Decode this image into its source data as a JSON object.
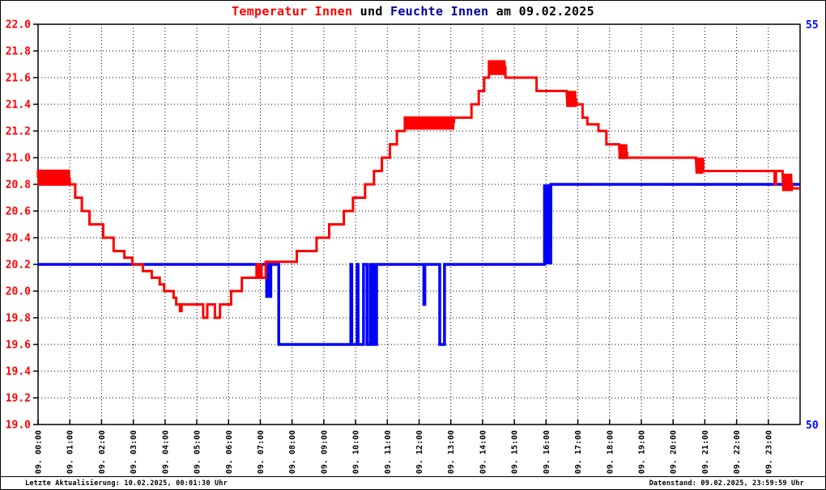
{
  "title": {
    "part1": "Temperatur Innen",
    "part2": " und ",
    "part3": "Feuchte Innen",
    "part4": " am 09.02.2025"
  },
  "footer": {
    "left": "Letzte Aktualisierung: 10.02.2025, 00:01:30 Uhr",
    "right": "Datenstand: 09.02.2025, 23:59:59 Uhr"
  },
  "colors": {
    "temperature": "#ff0000",
    "humidity": "#0000ff",
    "title_humidity": "#000099",
    "axis_left_labels": "#ff0000",
    "axis_right_labels": "#0000ff",
    "grid": "#000000",
    "background": "#ffffff"
  },
  "chart_data": {
    "type": "line",
    "title": "Temperatur Innen und Feuchte Innen am 09.02.2025",
    "grid": "dotted",
    "x_axis": {
      "range_hours": [
        0,
        24
      ],
      "tick_hours": [
        0,
        1,
        2,
        3,
        4,
        5,
        6,
        7,
        8,
        9,
        10,
        11,
        12,
        13,
        14,
        15,
        16,
        17,
        18,
        19,
        20,
        21,
        22,
        23
      ],
      "tick_labels": [
        "09. 00:00",
        "09. 01:00",
        "09. 02:00",
        "09. 03:00",
        "09. 04:00",
        "09. 05:00",
        "09. 06:00",
        "09. 07:00",
        "09. 08:00",
        "09. 09:00",
        "09. 10:00",
        "09. 11:00",
        "09. 12:00",
        "09. 13:00",
        "09. 14:00",
        "09. 15:00",
        "09. 16:00",
        "09. 17:00",
        "09. 18:00",
        "09. 19:00",
        "09. 20:00",
        "09. 21:00",
        "09. 22:00",
        "09. 23:00"
      ]
    },
    "y_axis_left": {
      "name": "Temperatur Innen",
      "min": 19.0,
      "max": 22.0,
      "tick_step": 0.2,
      "tick_labels": [
        "22.0",
        "21.8",
        "21.6",
        "21.4",
        "21.2",
        "21.0",
        "20.8",
        "20.6",
        "20.4",
        "20.2",
        "20.0",
        "19.8",
        "19.6",
        "19.4",
        "19.2",
        "19.0"
      ],
      "color": "#ff0000"
    },
    "y_axis_right": {
      "name": "Feuchte Innen",
      "min": 50,
      "max": 55,
      "tick_values": [
        55,
        50
      ],
      "tick_labels": [
        "55",
        "50"
      ],
      "color": "#0000ff"
    },
    "series": [
      {
        "name": "Temperatur Innen",
        "axis": "left",
        "color": "#ff0000",
        "stroke_width": 3,
        "points": [
          [
            0.0,
            20.85
          ],
          [
            1.0,
            20.8
          ],
          [
            1.17,
            20.7
          ],
          [
            1.38,
            20.6
          ],
          [
            1.62,
            20.5
          ],
          [
            2.05,
            20.4
          ],
          [
            2.38,
            20.3
          ],
          [
            2.72,
            20.25
          ],
          [
            2.97,
            20.2
          ],
          [
            3.3,
            20.15
          ],
          [
            3.58,
            20.1
          ],
          [
            3.83,
            20.05
          ],
          [
            3.97,
            20.0
          ],
          [
            4.27,
            19.95
          ],
          [
            4.35,
            19.9
          ],
          [
            4.47,
            19.85
          ],
          [
            4.52,
            19.9
          ],
          [
            5.2,
            19.8
          ],
          [
            5.33,
            19.9
          ],
          [
            5.57,
            19.8
          ],
          [
            5.73,
            19.9
          ],
          [
            6.08,
            20.0
          ],
          [
            6.42,
            20.1
          ],
          [
            6.88,
            20.2
          ],
          [
            6.93,
            20.1
          ],
          [
            7.0,
            20.2
          ],
          [
            7.04,
            20.1
          ],
          [
            7.17,
            20.22
          ],
          [
            8.15,
            20.3
          ],
          [
            8.77,
            20.4
          ],
          [
            9.17,
            20.5
          ],
          [
            9.63,
            20.6
          ],
          [
            9.92,
            20.7
          ],
          [
            10.3,
            20.8
          ],
          [
            10.58,
            20.9
          ],
          [
            10.83,
            21.0
          ],
          [
            11.08,
            21.1
          ],
          [
            11.3,
            21.2
          ],
          [
            13.1,
            21.3
          ],
          [
            13.65,
            21.4
          ],
          [
            13.88,
            21.5
          ],
          [
            14.05,
            21.6
          ],
          [
            14.72,
            21.6
          ],
          [
            15.7,
            21.5
          ],
          [
            16.95,
            21.4
          ],
          [
            17.15,
            21.3
          ],
          [
            17.3,
            21.25
          ],
          [
            17.65,
            21.2
          ],
          [
            17.9,
            21.1
          ],
          [
            18.55,
            21.0
          ],
          [
            20.95,
            20.9
          ],
          [
            23.2,
            20.8
          ],
          [
            23.24,
            20.9
          ],
          [
            23.75,
            20.77
          ]
        ],
        "noise_bands": [
          {
            "from": 0.0,
            "to": 1.0,
            "low": 20.79,
            "high": 20.91
          },
          {
            "from": 11.55,
            "to": 13.1,
            "low": 21.21,
            "high": 21.31
          },
          {
            "from": 14.2,
            "to": 14.7,
            "low": 21.62,
            "high": 21.73
          },
          {
            "from": 16.65,
            "to": 16.95,
            "low": 21.38,
            "high": 21.5
          },
          {
            "from": 18.3,
            "to": 18.55,
            "low": 20.99,
            "high": 21.1
          },
          {
            "from": 20.72,
            "to": 20.95,
            "low": 20.88,
            "high": 21.0
          },
          {
            "from": 23.45,
            "to": 23.75,
            "low": 20.75,
            "high": 20.88
          }
        ]
      },
      {
        "name": "Feuchte Innen",
        "axis": "right",
        "color": "#0000ff",
        "stroke_width": 3.5,
        "points": [
          [
            0.0,
            52
          ],
          [
            7.2,
            51.6
          ],
          [
            7.23,
            52
          ],
          [
            7.3,
            51.6
          ],
          [
            7.33,
            52
          ],
          [
            7.58,
            51
          ],
          [
            9.85,
            52
          ],
          [
            9.88,
            51
          ],
          [
            10.05,
            52
          ],
          [
            10.08,
            51
          ],
          [
            10.25,
            52
          ],
          [
            10.36,
            51
          ],
          [
            10.46,
            52
          ],
          [
            10.49,
            51
          ],
          [
            10.56,
            52
          ],
          [
            10.59,
            51
          ],
          [
            10.66,
            52
          ],
          [
            12.15,
            51.5
          ],
          [
            12.18,
            52
          ],
          [
            12.65,
            51
          ],
          [
            12.8,
            52
          ],
          [
            16.15,
            53
          ]
        ],
        "noise_bands": [
          {
            "from": 15.95,
            "to": 16.15,
            "low": 52,
            "high": 53
          }
        ]
      }
    ]
  }
}
